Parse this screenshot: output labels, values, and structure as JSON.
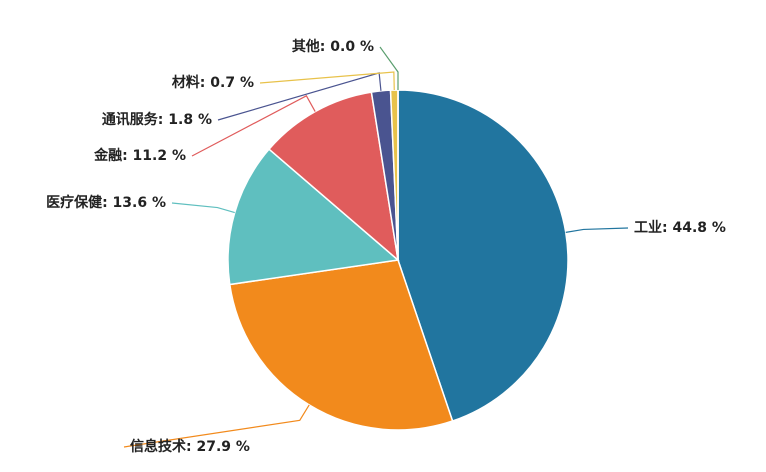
{
  "chart_data": {
    "type": "pie",
    "values": [
      44.8,
      27.9,
      13.6,
      11.2,
      1.8,
      0.7,
      0.0
    ],
    "value_labels": [
      "工业: 44.8 %",
      "信息技术: 27.9 %",
      "医疗保健: 13.6 %",
      "金融: 11.2 %",
      "通讯服务: 1.8 %",
      "材料: 0.7 %",
      "其他: 0.0 %"
    ],
    "colors": [
      "#21759f",
      "#f28a1c",
      "#5fbfbf",
      "#e05c5c",
      "#4a5490",
      "#e8c24a",
      "#5a9e6e"
    ]
  }
}
